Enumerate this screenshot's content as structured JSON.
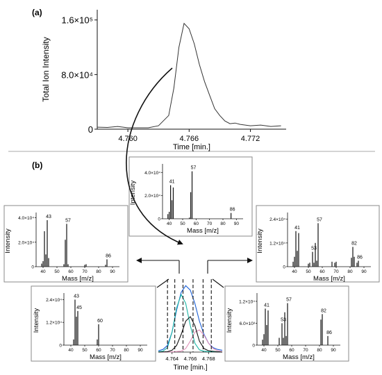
{
  "panel_labels": {
    "a": "(a)",
    "b": "(b)"
  },
  "unit_label": "Time [min.]",
  "colors": {
    "tic": "#333333",
    "bar": "#111111",
    "teal": "#1bb5a5",
    "blue": "#1a5fd6",
    "pink": "#e08fb8",
    "box_border": "#8a8a8a",
    "separator": "#aaaaaa"
  },
  "chart_data": [
    {
      "id": "tic",
      "type": "line",
      "title": "",
      "xlabel": "Time [min.]",
      "ylabel": "Total Ion Intensity",
      "xlim": [
        4.757,
        4.7755
      ],
      "ylim": [
        0,
        175000
      ],
      "x_ticks": [
        4.76,
        4.766,
        4.772
      ],
      "x_tick_labels": [
        "4.760",
        "4.766",
        "4.772"
      ],
      "y_ticks": [
        0,
        80000,
        160000
      ],
      "y_tick_labels": [
        "0",
        "8.0×10⁴",
        "1.6×10⁵"
      ],
      "series": [
        {
          "x": [
            4.757,
            4.758,
            4.759,
            4.76,
            4.761,
            4.762,
            4.763,
            4.764,
            4.7645,
            4.765,
            4.7655,
            4.766,
            4.7665,
            4.767,
            4.7675,
            4.768,
            4.7685,
            4.769,
            4.7695,
            4.77,
            4.7705,
            4.771,
            4.772,
            4.773,
            4.774,
            4.775
          ],
          "y": [
            3000,
            2500,
            4000,
            2000,
            2000,
            2000,
            5000,
            20000,
            60000,
            120000,
            155000,
            147000,
            125000,
            95000,
            70000,
            50000,
            30000,
            20000,
            12000,
            8000,
            9000,
            7000,
            5000,
            6000,
            4000,
            5000
          ]
        }
      ]
    },
    {
      "id": "center",
      "type": "bar",
      "title": "",
      "xlabel": "Mass [m/z]",
      "ylabel": "Intensity",
      "xlim": [
        35,
        95
      ],
      "ylim": [
        0,
        45000
      ],
      "x_ticks": [
        40,
        50,
        60,
        70,
        80,
        90
      ],
      "y_ticks": [
        0,
        20000,
        40000
      ],
      "y_tick_labels": [
        "0",
        "2.0×10⁴",
        "4.0×10⁴"
      ],
      "x": [
        39,
        40,
        41,
        42,
        43,
        55,
        56,
        57,
        86
      ],
      "values": [
        4000,
        6000,
        29000,
        16000,
        27000,
        1000,
        23000,
        41000,
        5000
      ],
      "annotations": [
        {
          "x": 41,
          "label": "41"
        },
        {
          "x": 57,
          "label": "57"
        },
        {
          "x": 86,
          "label": "86"
        }
      ]
    },
    {
      "id": "left",
      "type": "bar",
      "title": "",
      "xlabel": "Mass [m/z]",
      "ylabel": "Intensity",
      "xlim": [
        35,
        95
      ],
      "ylim": [
        0,
        42000
      ],
      "x_ticks": [
        40,
        50,
        60,
        70,
        80,
        90
      ],
      "y_ticks": [
        0,
        20000,
        40000
      ],
      "y_tick_labels": [
        "0",
        "2.0×10⁴",
        "4.0×10⁴"
      ],
      "x": [
        39,
        40,
        41,
        42,
        43,
        44,
        55,
        56,
        57,
        58,
        70,
        71,
        85,
        86
      ],
      "values": [
        2500,
        4500,
        29000,
        10000,
        38000,
        7000,
        2000,
        22000,
        35000,
        2000,
        1500,
        2000,
        1500,
        6000
      ],
      "annotations": [
        {
          "x": 43,
          "label": "43"
        },
        {
          "x": 57,
          "label": "57"
        },
        {
          "x": 86,
          "label": "86"
        }
      ]
    },
    {
      "id": "right",
      "type": "bar",
      "title": "",
      "xlabel": "Mass [m/z]",
      "ylabel": "Intensity",
      "xlim": [
        35,
        95
      ],
      "ylim": [
        0,
        26000
      ],
      "x_ticks": [
        40,
        50,
        60,
        70,
        80,
        90
      ],
      "y_ticks": [
        0,
        12000,
        24000
      ],
      "y_tick_labels": [
        "0",
        "1.2×10⁴",
        "2.4×10⁴"
      ],
      "x": [
        39,
        40,
        41,
        42,
        43,
        50,
        51,
        53,
        54,
        55,
        56,
        57,
        67,
        69,
        70,
        81,
        82,
        83,
        85,
        86
      ],
      "values": [
        2500,
        5000,
        18000,
        8000,
        17000,
        1500,
        2000,
        7500,
        2000,
        12000,
        3000,
        22000,
        2500,
        2000,
        2500,
        4500,
        10000,
        5000,
        2000,
        3000
      ],
      "annotations": [
        {
          "x": 41,
          "label": "41"
        },
        {
          "x": 53,
          "label": "53"
        },
        {
          "x": 57,
          "label": "57"
        },
        {
          "x": 82,
          "label": "82"
        },
        {
          "x": 86,
          "label": "86"
        }
      ]
    },
    {
      "id": "bottom_left",
      "type": "bar",
      "title": "",
      "xlabel": "Mass [m/z]",
      "ylabel": "Intensity",
      "xlim": [
        35,
        95
      ],
      "ylim": [
        0,
        26000
      ],
      "x_ticks": [
        40,
        50,
        60,
        70,
        80,
        90
      ],
      "y_ticks": [
        0,
        12000,
        24000
      ],
      "y_tick_labels": [
        "0",
        "1.2×10⁴",
        "2.4×10⁴"
      ],
      "x": [
        42,
        43,
        44,
        45,
        59,
        60
      ],
      "values": [
        3000,
        24000,
        15000,
        18000,
        3000,
        11000
      ],
      "annotations": [
        {
          "x": 43,
          "label": "43"
        },
        {
          "x": 45,
          "label": "45"
        },
        {
          "x": 60,
          "label": "60"
        }
      ]
    },
    {
      "id": "bottom_right",
      "type": "bar",
      "title": "",
      "xlabel": "Mass [m/z]",
      "ylabel": "Intensity",
      "xlim": [
        35,
        95
      ],
      "ylim": [
        0,
        13500
      ],
      "x_ticks": [
        40,
        50,
        60,
        70,
        80,
        90
      ],
      "y_ticks": [
        0,
        6000,
        12000
      ],
      "y_tick_labels": [
        "0",
        "6.0×10³",
        "1.2×10⁴"
      ],
      "x": [
        39,
        40,
        41,
        42,
        43,
        51,
        53,
        54,
        55,
        56,
        57,
        81,
        82,
        86
      ],
      "values": [
        1500,
        3000,
        10000,
        5500,
        9500,
        2000,
        6000,
        2000,
        9000,
        2500,
        11500,
        7000,
        8500,
        2500
      ],
      "annotations": [
        {
          "x": 41,
          "label": "41"
        },
        {
          "x": 53,
          "label": "53"
        },
        {
          "x": 57,
          "label": "57"
        },
        {
          "x": 82,
          "label": "82"
        },
        {
          "x": 86,
          "label": "86"
        }
      ]
    },
    {
      "id": "deconv",
      "type": "line",
      "title": "",
      "xlabel": "Time [min.]",
      "ylabel": "",
      "xlim": [
        4.7625,
        4.7695
      ],
      "ylim": [
        0,
        160000
      ],
      "x_ticks": [
        4.764,
        4.766,
        4.768
      ],
      "x_tick_labels": [
        "4.764",
        "4.766",
        "4.768"
      ],
      "series": [
        {
          "color": "blue",
          "x": [
            4.7625,
            4.763,
            4.7635,
            4.764,
            4.7645,
            4.765,
            4.7655,
            4.766,
            4.7665,
            4.767,
            4.7675,
            4.768,
            4.7685,
            4.769,
            4.7695
          ],
          "y": [
            3000,
            6000,
            15000,
            45000,
            95000,
            135000,
            150000,
            140000,
            110000,
            70000,
            40000,
            20000,
            10000,
            6000,
            4000
          ]
        },
        {
          "color": "teal",
          "x": [
            4.7625,
            4.763,
            4.7635,
            4.764,
            4.7645,
            4.765,
            4.7655,
            4.766,
            4.7665,
            4.767,
            4.7675,
            4.768,
            4.7685,
            4.769,
            4.7695
          ],
          "y": [
            1000,
            2000,
            10000,
            45000,
            100000,
            130000,
            110000,
            60000,
            20000,
            5000,
            2000,
            1000,
            1000,
            1000,
            1000
          ]
        },
        {
          "color": "pink",
          "x": [
            4.7625,
            4.764,
            4.765,
            4.7655,
            4.766,
            4.7665,
            4.767,
            4.7675,
            4.768,
            4.7685,
            4.769,
            4.7695
          ],
          "y": [
            0,
            500,
            2000,
            8000,
            25000,
            45000,
            50000,
            38000,
            20000,
            8000,
            3000,
            1000
          ]
        },
        {
          "color": "black",
          "x": [
            4.7625,
            4.7635,
            4.764,
            4.7645,
            4.765,
            4.7655,
            4.766,
            4.7665,
            4.767,
            4.7675,
            4.768,
            4.769,
            4.7695
          ],
          "y": [
            0,
            1000,
            4000,
            15000,
            40000,
            70000,
            80000,
            60000,
            25000,
            8000,
            3000,
            500,
            0
          ]
        }
      ]
    }
  ]
}
